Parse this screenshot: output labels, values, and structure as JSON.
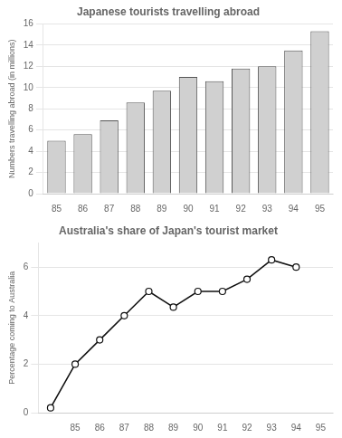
{
  "chart_data": [
    {
      "type": "bar",
      "title": "Japanese tourists travelling abroad",
      "ylabel": "Numbers travelling abroad (in millions)",
      "categories": [
        "85",
        "86",
        "87",
        "88",
        "89",
        "90",
        "91",
        "92",
        "93",
        "94",
        "95"
      ],
      "values": [
        5.0,
        5.6,
        6.9,
        8.6,
        9.7,
        11.0,
        10.6,
        11.8,
        12.0,
        13.5,
        15.3
      ],
      "color": "#d0d0d0",
      "ylim": [
        0,
        16
      ],
      "yticks": [
        0,
        2,
        4,
        6,
        8,
        10,
        12,
        14,
        16
      ],
      "grid": true
    },
    {
      "type": "line",
      "title": "Australia's share of Japan's tourist market",
      "ylabel": "Percentage coming to Australia",
      "x": [
        84,
        85,
        86,
        87,
        88,
        89,
        90,
        91,
        92,
        93,
        94
      ],
      "values": [
        0.2,
        2.0,
        3.0,
        4.0,
        5.0,
        4.35,
        5.0,
        5.0,
        5.5,
        6.3,
        6.0
      ],
      "color": "#111111",
      "marker": "o",
      "xlim": [
        83.5,
        95.5
      ],
      "xticks": [
        85,
        86,
        87,
        88,
        89,
        90,
        91,
        92,
        93,
        94,
        95
      ],
      "ylim": [
        0,
        7
      ],
      "yticks": [
        0,
        2,
        4,
        6
      ],
      "grid": true
    }
  ]
}
